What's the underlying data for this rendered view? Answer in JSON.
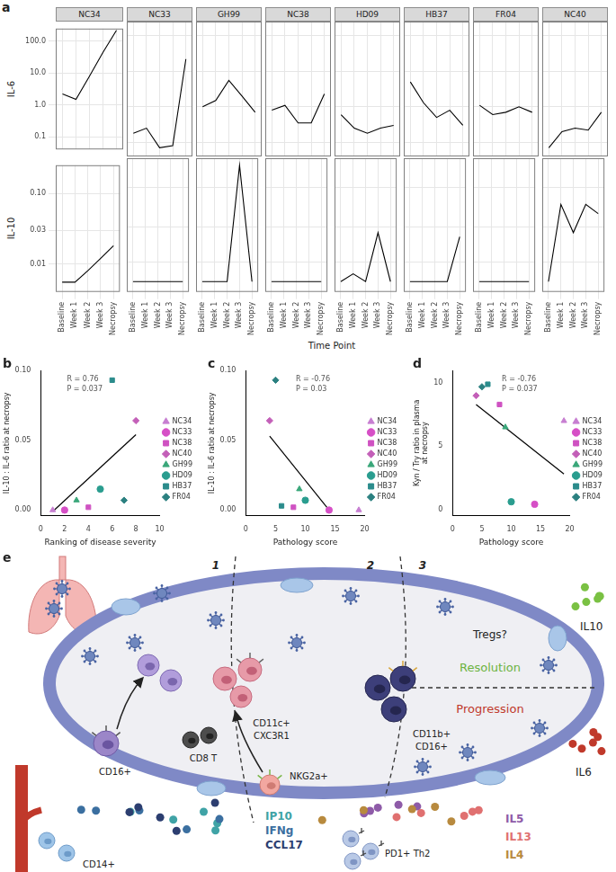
{
  "chart_data": [
    {
      "type": "line",
      "label": "a",
      "x_label": "Time Point",
      "categories": [
        "Baseline",
        "Week 1",
        "Week 2",
        "Week 3",
        "Necropsy"
      ],
      "color": "#000000",
      "grid": true,
      "rows": [
        {
          "y_label": "IL-6",
          "log": "y",
          "ylim": [
            0.04,
            250
          ],
          "yticks": [
            0.1,
            {
              "value": 1,
              "label": "1.0"
            },
            {
              "value": 10,
              "label": "10.0"
            },
            {
              "value": 100,
              "label": "100.0"
            }
          ],
          "series": [
            {
              "name": "NC34",
              "values": [
                2.2,
                1.5,
                8,
                45,
                220
              ]
            },
            {
              "name": "NC33",
              "values": [
                0.18,
                0.25,
                0.07,
                0.08,
                22
              ]
            },
            {
              "name": "GH99",
              "values": [
                1.0,
                1.5,
                5.5,
                2.0,
                0.7
              ]
            },
            {
              "name": "NC38",
              "values": [
                0.8,
                1.1,
                0.35,
                0.35,
                2.3
              ]
            },
            {
              "name": "HD09",
              "values": [
                0.6,
                0.25,
                0.18,
                0.25,
                0.3
              ]
            },
            {
              "name": "HB37",
              "values": [
                5.0,
                1.3,
                0.5,
                0.8,
                0.3
              ]
            },
            {
              "name": "FR04",
              "values": [
                1.1,
                0.6,
                0.7,
                1.0,
                0.7
              ]
            },
            {
              "name": "NC40",
              "values": [
                0.07,
                0.2,
                0.25,
                0.22,
                0.7
              ]
            }
          ]
        },
        {
          "y_label": "IL-10",
          "log": "y",
          "ylim": [
            0.004,
            0.25
          ],
          "yticks": [
            0.01,
            0.03,
            {
              "value": 0.1,
              "label": "0.10"
            }
          ],
          "series": [
            {
              "name": "NC34",
              "values": [
                0.0055,
                0.0055,
                0.008,
                0.012,
                0.018
              ]
            },
            {
              "name": "NC33",
              "values": [
                0.0055,
                0.0055,
                0.0055,
                0.0055,
                0.0055
              ]
            },
            {
              "name": "GH99",
              "values": [
                0.0055,
                0.0055,
                0.0055,
                0.2,
                0.0055
              ]
            },
            {
              "name": "NC38",
              "values": [
                0.0055,
                0.0055,
                0.0055,
                0.0055,
                0.0055
              ]
            },
            {
              "name": "HD09",
              "values": [
                0.0055,
                0.007,
                0.0055,
                0.025,
                0.0055
              ]
            },
            {
              "name": "HB37",
              "values": [
                0.0055,
                0.0055,
                0.0055,
                0.0055,
                0.022
              ]
            },
            {
              "name": "FR04",
              "values": [
                0.0055,
                0.0055,
                0.0055,
                0.0055,
                0.0055
              ]
            },
            {
              "name": "NC40",
              "values": [
                0.0055,
                0.06,
                0.025,
                0.06,
                0.045
              ]
            }
          ]
        }
      ]
    },
    {
      "type": "scatter",
      "label": "b",
      "x_label": "Ranking of disease severity",
      "y_label": "IL-10 : IL-6 ratio at necropsy",
      "xlim": [
        0,
        10
      ],
      "xticks": [
        0,
        2,
        4,
        6,
        8,
        10
      ],
      "ylim": [
        -0.004,
        0.1
      ],
      "yticks": [
        {
          "value": 0,
          "label": "0.00"
        },
        {
          "value": 0.05,
          "label": "0.05"
        },
        {
          "value": 0.1,
          "label": "0.10"
        }
      ],
      "grid": false,
      "legend": "right",
      "annotations": [
        "R = 0.76",
        "P = 0.037"
      ],
      "trend_line": {
        "x": [
          1,
          8
        ],
        "values": [
          -0.001,
          0.054
        ],
        "color": "#000000"
      },
      "series": [
        {
          "name": "NC34",
          "color": "#c77fd1",
          "marker": "triangle",
          "x": [
            1
          ],
          "values": [
            0
          ]
        },
        {
          "name": "NC33",
          "color": "#d64fc6",
          "marker": "circle",
          "x": [
            2
          ],
          "values": [
            0
          ]
        },
        {
          "name": "NC38",
          "color": "#cf52c2",
          "marker": "square",
          "x": [
            4
          ],
          "values": [
            0.002
          ]
        },
        {
          "name": "NC40",
          "color": "#c35fb8",
          "marker": "diamond",
          "x": [
            8
          ],
          "values": [
            0.064
          ]
        },
        {
          "name": "GH99",
          "color": "#3aa77a",
          "marker": "triangle",
          "x": [
            3
          ],
          "values": [
            0.007
          ]
        },
        {
          "name": "HD09",
          "color": "#2a9d8f",
          "marker": "circle",
          "x": [
            5
          ],
          "values": [
            0.015
          ]
        },
        {
          "name": "HB37",
          "color": "#2b8c8c",
          "marker": "square",
          "x": [
            6
          ],
          "values": [
            0.093
          ]
        },
        {
          "name": "FR04",
          "color": "#2b8080",
          "marker": "diamond",
          "x": [
            7
          ],
          "values": [
            0.007
          ]
        }
      ]
    },
    {
      "type": "scatter",
      "label": "c",
      "x_label": "Pathology score",
      "y_label": "IL-10 : IL-6 ratio at necropsy",
      "xlim": [
        0,
        20
      ],
      "xticks": [
        0,
        5,
        10,
        15,
        20
      ],
      "ylim": [
        -0.004,
        0.1
      ],
      "yticks": [
        {
          "value": 0,
          "label": "0.00"
        },
        {
          "value": 0.05,
          "label": "0.05"
        },
        {
          "value": 0.1,
          "label": "0.10"
        }
      ],
      "grid": false,
      "legend": "right",
      "annotations": [
        "R = -0.76",
        "P = 0.03"
      ],
      "trend_line": {
        "x": [
          4,
          14
        ],
        "values": [
          0.053,
          0.0
        ],
        "color": "#000000"
      },
      "series": [
        {
          "name": "NC34",
          "color": "#c77fd1",
          "marker": "triangle",
          "x": [
            19
          ],
          "values": [
            0
          ]
        },
        {
          "name": "NC33",
          "color": "#d64fc6",
          "marker": "circle",
          "x": [
            14
          ],
          "values": [
            0
          ]
        },
        {
          "name": "NC38",
          "color": "#cf52c2",
          "marker": "square",
          "x": [
            8
          ],
          "values": [
            0.002
          ]
        },
        {
          "name": "NC40",
          "color": "#c35fb8",
          "marker": "diamond",
          "x": [
            4
          ],
          "values": [
            0.064
          ]
        },
        {
          "name": "GH99",
          "color": "#3aa77a",
          "marker": "triangle",
          "x": [
            9
          ],
          "values": [
            0.015
          ]
        },
        {
          "name": "HD09",
          "color": "#2a9d8f",
          "marker": "circle",
          "x": [
            10
          ],
          "values": [
            0.007
          ]
        },
        {
          "name": "HB37",
          "color": "#2b8c8c",
          "marker": "square",
          "x": [
            6
          ],
          "values": [
            0.003
          ]
        },
        {
          "name": "FR04",
          "color": "#2b8080",
          "marker": "diamond",
          "x": [
            5
          ],
          "values": [
            0.093
          ]
        }
      ]
    },
    {
      "type": "scatter",
      "label": "d",
      "x_label": "Pathology score",
      "y_label": [
        "Kyn / Try ratio in plasma",
        "at necropsy"
      ],
      "xlim": [
        0,
        20
      ],
      "xticks": [
        0,
        5,
        10,
        15,
        20
      ],
      "ylim": [
        -0.5,
        11
      ],
      "yticks": [
        0,
        5,
        10
      ],
      "grid": false,
      "legend": "right",
      "annotations": [
        "R = -0.76",
        "P = 0.037"
      ],
      "trend_line": {
        "x": [
          4,
          19
        ],
        "values": [
          8.3,
          2.8
        ],
        "color": "#000000"
      },
      "series": [
        {
          "name": "NC34",
          "color": "#c77fd1",
          "marker": "triangle",
          "x": [
            19
          ],
          "values": [
            7.0
          ]
        },
        {
          "name": "NC33",
          "color": "#d64fc6",
          "marker": "circle",
          "x": [
            14
          ],
          "values": [
            0.4
          ]
        },
        {
          "name": "NC38",
          "color": "#cf52c2",
          "marker": "square",
          "x": [
            8
          ],
          "values": [
            8.3
          ]
        },
        {
          "name": "NC40",
          "color": "#c35fb8",
          "marker": "diamond",
          "x": [
            4
          ],
          "values": [
            9.0
          ]
        },
        {
          "name": "GH99",
          "color": "#3aa77a",
          "marker": "triangle",
          "x": [
            9
          ],
          "values": [
            6.5
          ]
        },
        {
          "name": "HD09",
          "color": "#2a9d8f",
          "marker": "circle",
          "x": [
            10
          ],
          "values": [
            0.6
          ]
        },
        {
          "name": "HB37",
          "color": "#2b8c8c",
          "marker": "square",
          "x": [
            6
          ],
          "values": [
            9.9
          ]
        },
        {
          "name": "FR04",
          "color": "#2b8080",
          "marker": "diamond",
          "x": [
            5
          ],
          "values": [
            9.7
          ]
        }
      ]
    }
  ],
  "diagram": {
    "label": "e",
    "zones": [
      "1",
      "2",
      "3"
    ],
    "cells": {
      "cd16_monocyte": "CD16+",
      "cd11c": [
        "CD11c+",
        "CXC3R1"
      ],
      "cd11b": [
        "CD11b+",
        "CD16+"
      ],
      "cd8": "CD8 T",
      "nkg2a": "NKG2a+",
      "th2": "PD1+ Th2",
      "cd14": "CD14+"
    },
    "outcomes": {
      "tregs": "Tregs?",
      "resolution": {
        "text": "Resolution",
        "color": "#6cb33f"
      },
      "progression": {
        "text": "Progression",
        "color": "#c0392b"
      }
    },
    "cytokines": {
      "il10": {
        "text": "IL10",
        "color": "#7ac143"
      },
      "il6": {
        "text": "IL6",
        "color": "#c0392b"
      },
      "zone1": [
        {
          "text": "IP10",
          "color": "#3fa3a6"
        },
        {
          "text": "IFNg",
          "color": "#3b6fa0"
        },
        {
          "text": "CCL17",
          "color": "#2c3e70"
        }
      ],
      "zone2": [
        {
          "text": "IL5",
          "color": "#8e5ba8"
        },
        {
          "text": "IL13",
          "color": "#e07070"
        },
        {
          "text": "IL4",
          "color": "#b88a3e"
        }
      ]
    }
  }
}
